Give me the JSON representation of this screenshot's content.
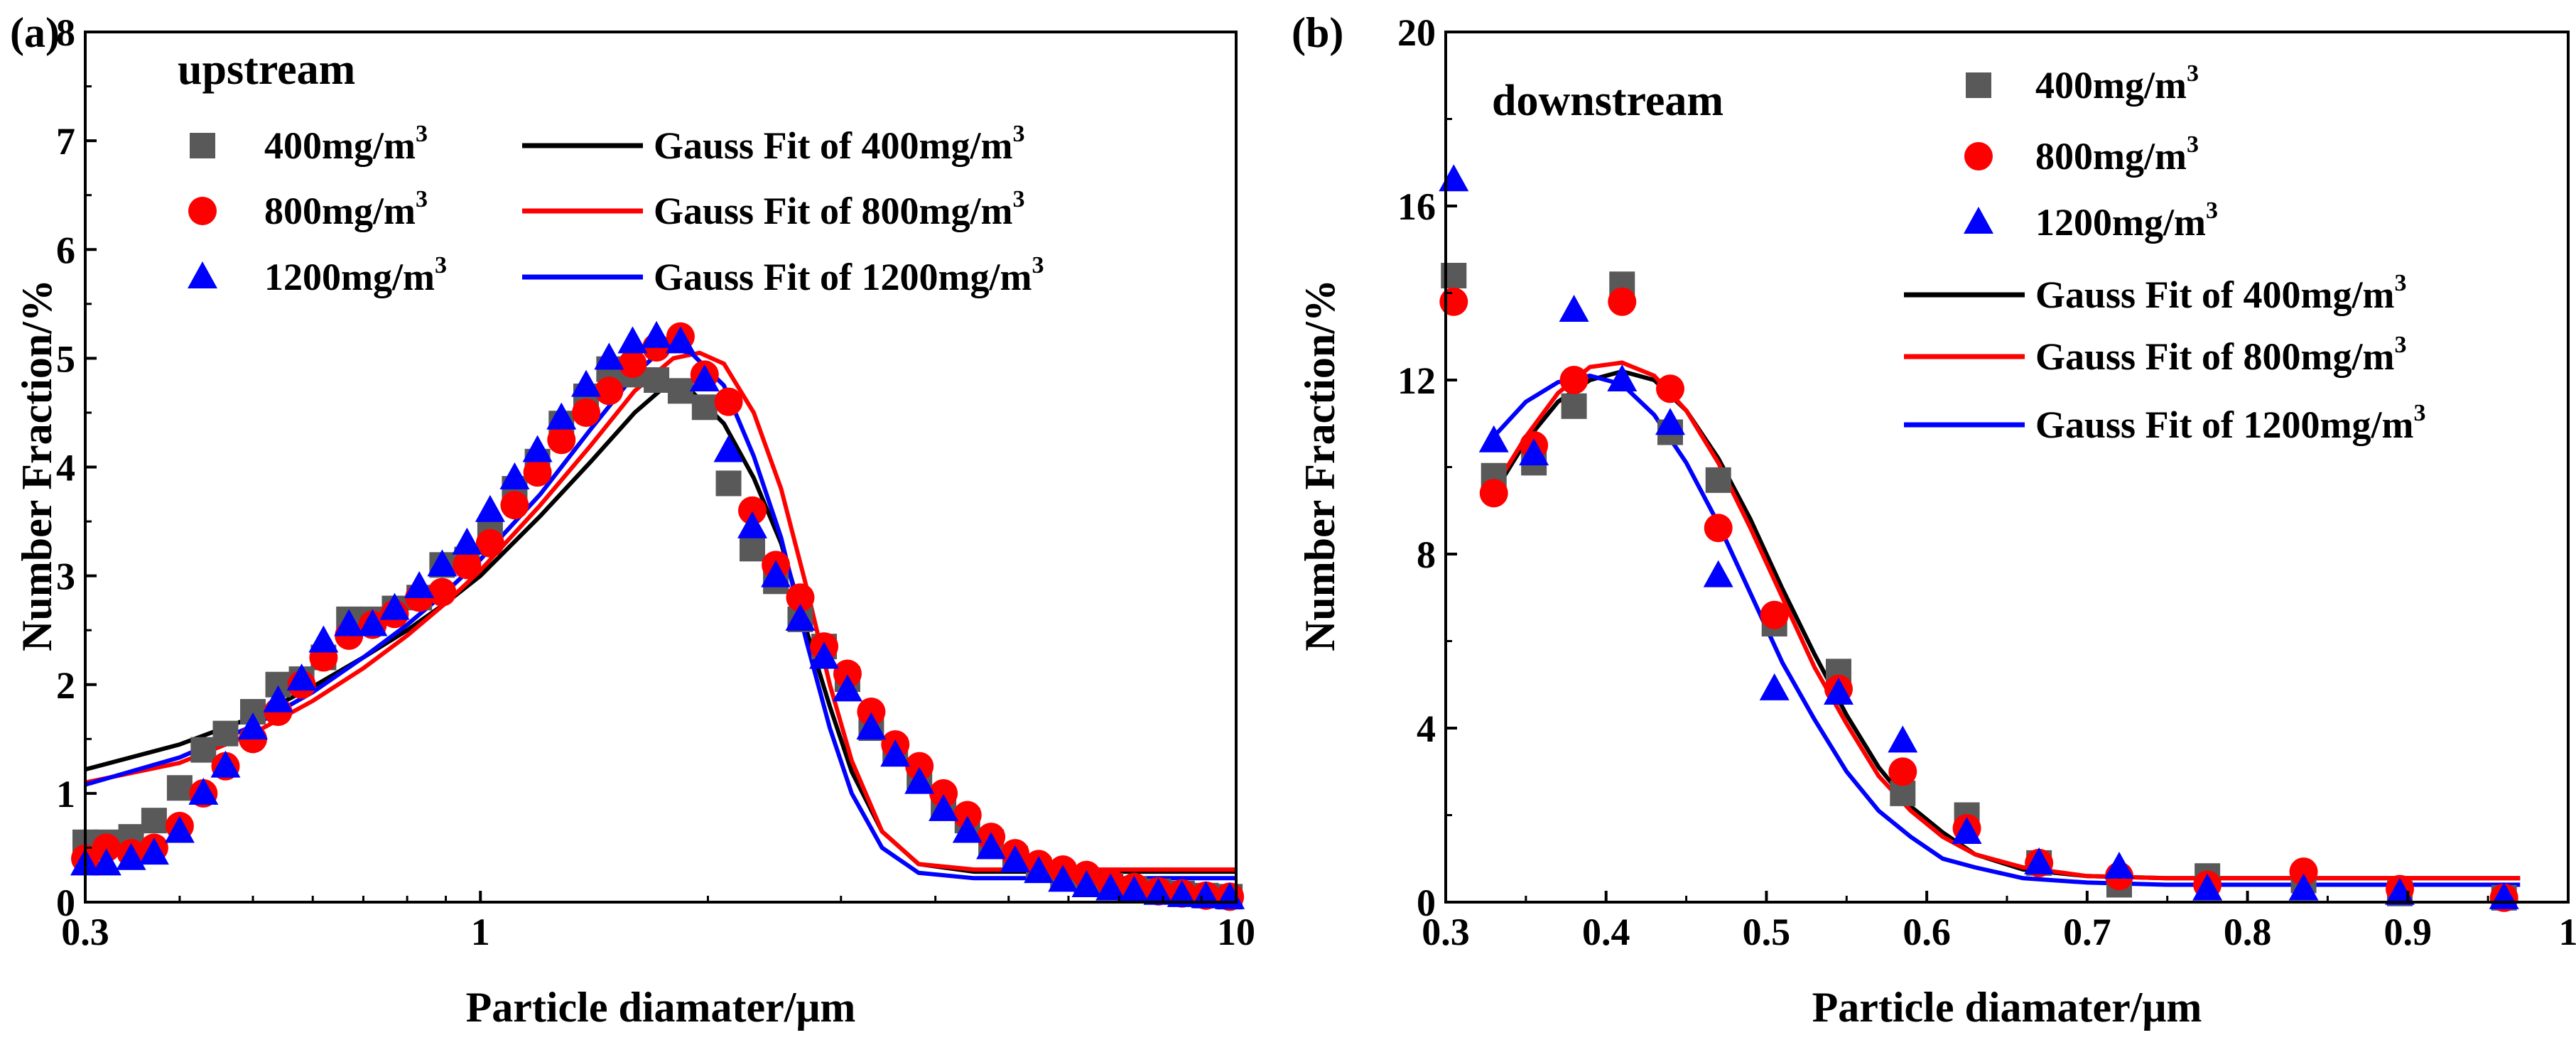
{
  "chart_data": [
    {
      "type": "scatter",
      "panel_label": "(a)",
      "subtitle": "upstream",
      "xlabel": "Particle diamater/μm",
      "ylabel": "Number Fraction/%",
      "xscale": "log",
      "xlim": [
        0.3,
        10
      ],
      "ylim": [
        0,
        8
      ],
      "xticks": [
        0.3,
        1,
        10
      ],
      "xtick_labels": [
        "0.3",
        "1",
        "10"
      ],
      "yticks": [
        0,
        1,
        2,
        3,
        4,
        5,
        6,
        7,
        8
      ],
      "ytick_labels": [
        "0",
        "1",
        "2",
        "3",
        "4",
        "5",
        "6",
        "7",
        "8"
      ],
      "series": [
        {
          "name": "400mg/m",
          "sup": "3",
          "marker": "square",
          "color": "#595959",
          "x": [
            0.3,
            0.32,
            0.345,
            0.37,
            0.4,
            0.43,
            0.46,
            0.5,
            0.54,
            0.58,
            0.62,
            0.67,
            0.72,
            0.77,
            0.83,
            0.89,
            0.96,
            1.03,
            1.11,
            1.19,
            1.28,
            1.38,
            1.48,
            1.59,
            1.71,
            1.84,
            1.98,
            2.13,
            2.29,
            2.46,
            2.65,
            2.85,
            3.06,
            3.29,
            3.54,
            3.81,
            4.1,
            4.41,
            4.74,
            5.1,
            5.48,
            5.9,
            6.34,
            6.82,
            7.33,
            7.89,
            8.48,
            9.12,
            9.81
          ],
          "y": [
            0.55,
            0.55,
            0.6,
            0.75,
            1.05,
            1.4,
            1.55,
            1.75,
            2.0,
            2.05,
            2.25,
            2.6,
            2.6,
            2.7,
            2.8,
            3.1,
            3.15,
            3.4,
            3.8,
            4.05,
            4.4,
            4.65,
            4.9,
            4.85,
            4.8,
            4.7,
            4.55,
            3.85,
            3.25,
            2.95,
            2.6,
            2.35,
            2.05,
            1.6,
            1.4,
            1.15,
            0.9,
            0.75,
            0.55,
            0.4,
            0.3,
            0.25,
            0.2,
            0.15,
            0.12,
            0.1,
            0.08,
            0.06,
            0.05
          ]
        },
        {
          "name": "800mg/m",
          "sup": "3",
          "marker": "circle",
          "color": "#ff0000",
          "x": [
            0.3,
            0.32,
            0.345,
            0.37,
            0.4,
            0.43,
            0.46,
            0.5,
            0.54,
            0.58,
            0.62,
            0.67,
            0.72,
            0.77,
            0.83,
            0.89,
            0.96,
            1.03,
            1.11,
            1.19,
            1.28,
            1.38,
            1.48,
            1.59,
            1.71,
            1.84,
            1.98,
            2.13,
            2.29,
            2.46,
            2.65,
            2.85,
            3.06,
            3.29,
            3.54,
            3.81,
            4.1,
            4.41,
            4.74,
            5.1,
            5.48,
            5.9,
            6.34,
            6.82,
            7.33,
            7.89,
            8.48,
            9.12,
            9.81
          ],
          "y": [
            0.4,
            0.5,
            0.45,
            0.5,
            0.7,
            1.0,
            1.25,
            1.5,
            1.75,
            2.0,
            2.25,
            2.45,
            2.55,
            2.65,
            2.8,
            2.85,
            3.1,
            3.3,
            3.65,
            3.95,
            4.25,
            4.5,
            4.7,
            4.95,
            5.1,
            5.2,
            4.85,
            4.6,
            3.6,
            3.1,
            2.8,
            2.35,
            2.1,
            1.75,
            1.45,
            1.25,
            1.0,
            0.8,
            0.6,
            0.45,
            0.35,
            0.3,
            0.25,
            0.18,
            0.14,
            0.1,
            0.08,
            0.06,
            0.05
          ]
        },
        {
          "name": "1200mg/m",
          "sup": "3",
          "marker": "triangle",
          "color": "#0000ff",
          "x": [
            0.3,
            0.32,
            0.345,
            0.37,
            0.4,
            0.43,
            0.46,
            0.5,
            0.54,
            0.58,
            0.62,
            0.67,
            0.72,
            0.77,
            0.83,
            0.89,
            0.96,
            1.03,
            1.11,
            1.19,
            1.28,
            1.38,
            1.48,
            1.59,
            1.71,
            1.84,
            1.98,
            2.13,
            2.29,
            2.46,
            2.65,
            2.85,
            3.06,
            3.29,
            3.54,
            3.81,
            4.1,
            4.41,
            4.74,
            5.1,
            5.48,
            5.9,
            6.34,
            6.82,
            7.33,
            7.89,
            8.48,
            9.12,
            9.81
          ],
          "y": [
            0.35,
            0.35,
            0.4,
            0.45,
            0.65,
            1.0,
            1.25,
            1.6,
            1.85,
            2.05,
            2.4,
            2.55,
            2.55,
            2.7,
            2.9,
            3.1,
            3.3,
            3.6,
            3.9,
            4.15,
            4.45,
            4.75,
            5.0,
            5.15,
            5.2,
            5.15,
            4.8,
            4.15,
            3.45,
            3.0,
            2.6,
            2.25,
            1.95,
            1.6,
            1.35,
            1.1,
            0.85,
            0.65,
            0.5,
            0.38,
            0.28,
            0.2,
            0.15,
            0.12,
            0.1,
            0.08,
            0.06,
            0.05,
            0.04
          ]
        },
        {
          "name": "Gauss Fit of 400mg/m",
          "sup": "3",
          "marker": "line",
          "color": "#000000",
          "x": [
            0.3,
            0.4,
            0.5,
            0.6,
            0.7,
            0.8,
            0.9,
            1.0,
            1.2,
            1.4,
            1.6,
            1.76,
            1.9,
            2.1,
            2.3,
            2.5,
            2.7,
            2.9,
            3.1,
            3.4,
            3.8,
            4.5,
            6.0,
            8.0,
            10.0
          ],
          "y": [
            1.22,
            1.45,
            1.7,
            1.98,
            2.25,
            2.5,
            2.75,
            3.0,
            3.55,
            4.05,
            4.5,
            4.75,
            4.7,
            4.4,
            3.9,
            3.3,
            2.5,
            1.8,
            1.2,
            0.65,
            0.35,
            0.28,
            0.28,
            0.28,
            0.28
          ]
        },
        {
          "name": "Gauss Fit of 800mg/m",
          "sup": "3",
          "marker": "line",
          "color": "#ff0000",
          "x": [
            0.3,
            0.4,
            0.5,
            0.6,
            0.7,
            0.8,
            0.9,
            1.0,
            1.2,
            1.4,
            1.6,
            1.8,
            1.95,
            2.1,
            2.3,
            2.5,
            2.7,
            2.9,
            3.1,
            3.4,
            3.8,
            4.5,
            6.0,
            8.0,
            10.0
          ],
          "y": [
            1.1,
            1.28,
            1.55,
            1.85,
            2.15,
            2.45,
            2.75,
            3.05,
            3.65,
            4.2,
            4.7,
            5.0,
            5.05,
            4.95,
            4.5,
            3.8,
            2.9,
            2.0,
            1.3,
            0.65,
            0.35,
            0.3,
            0.3,
            0.3,
            0.3
          ]
        },
        {
          "name": "Gauss Fit of 1200mg/m",
          "sup": "3",
          "marker": "line",
          "color": "#0000ff",
          "x": [
            0.3,
            0.4,
            0.5,
            0.6,
            0.7,
            0.8,
            0.9,
            1.0,
            1.2,
            1.4,
            1.6,
            1.75,
            1.9,
            2.1,
            2.3,
            2.5,
            2.7,
            2.9,
            3.1,
            3.4,
            3.8,
            4.5,
            6.0,
            8.0,
            10.0
          ],
          "y": [
            1.08,
            1.33,
            1.62,
            1.93,
            2.25,
            2.55,
            2.85,
            3.15,
            3.75,
            4.35,
            4.85,
            5.1,
            5.05,
            4.75,
            4.1,
            3.35,
            2.4,
            1.6,
            1.0,
            0.5,
            0.27,
            0.22,
            0.22,
            0.22,
            0.22
          ]
        }
      ]
    },
    {
      "type": "scatter",
      "panel_label": "(b)",
      "subtitle": "downstream",
      "xlabel": "Particle diamater/μm",
      "ylabel": "Number Fraction/%",
      "xscale": "linear",
      "xlim": [
        0.3,
        1.0
      ],
      "ylim": [
        0,
        20
      ],
      "xticks": [
        0.3,
        0.4,
        0.5,
        0.6,
        0.7,
        0.8,
        0.9,
        1.0
      ],
      "xtick_labels": [
        "0.3",
        "0.4",
        "0.5",
        "0.6",
        "0.7",
        "0.8",
        "0.9",
        "1"
      ],
      "yticks": [
        0,
        4,
        8,
        12,
        16,
        20
      ],
      "ytick_labels": [
        "0",
        "4",
        "8",
        "12",
        "16",
        "20"
      ],
      "series": [
        {
          "name": "400mg/m",
          "sup": "3",
          "marker": "square",
          "color": "#595959",
          "x": [
            0.305,
            0.33,
            0.355,
            0.38,
            0.41,
            0.44,
            0.47,
            0.505,
            0.545,
            0.585,
            0.625,
            0.67,
            0.72,
            0.775,
            0.835,
            0.895,
            0.96
          ],
          "y": [
            14.4,
            9.8,
            10.1,
            11.4,
            14.2,
            10.8,
            9.7,
            6.4,
            5.3,
            2.5,
            2.0,
            0.9,
            0.4,
            0.6,
            0.5,
            0.2,
            0.1
          ]
        },
        {
          "name": "800mg/m",
          "sup": "3",
          "marker": "circle",
          "color": "#ff0000",
          "x": [
            0.305,
            0.33,
            0.355,
            0.38,
            0.41,
            0.44,
            0.47,
            0.505,
            0.545,
            0.585,
            0.625,
            0.67,
            0.72,
            0.775,
            0.835,
            0.895,
            0.96
          ],
          "y": [
            13.8,
            9.4,
            10.5,
            12.0,
            13.8,
            11.8,
            8.6,
            6.6,
            4.9,
            3.0,
            1.7,
            0.9,
            0.6,
            0.4,
            0.7,
            0.3,
            0.1
          ]
        },
        {
          "name": "1200mg/m",
          "sup": "3",
          "marker": "triangle",
          "color": "#0000ff",
          "x": [
            0.305,
            0.33,
            0.355,
            0.38,
            0.41,
            0.44,
            0.47,
            0.505,
            0.545,
            0.585,
            0.625,
            0.67,
            0.72,
            0.775,
            0.835,
            0.895,
            0.96
          ],
          "y": [
            16.6,
            10.6,
            10.3,
            13.6,
            12.0,
            11.0,
            7.5,
            4.9,
            4.8,
            3.7,
            1.6,
            0.9,
            0.8,
            0.3,
            0.3,
            0.2,
            0.1
          ]
        },
        {
          "name": "Gauss Fit of 400mg/m",
          "sup": "3",
          "marker": "line",
          "color": "#000000",
          "x": [
            0.33,
            0.35,
            0.37,
            0.39,
            0.41,
            0.43,
            0.45,
            0.47,
            0.49,
            0.51,
            0.53,
            0.55,
            0.57,
            0.59,
            0.61,
            0.63,
            0.66,
            0.7,
            0.75,
            0.8,
            0.85,
            0.9,
            0.97
          ],
          "y": [
            9.4,
            10.6,
            11.5,
            12.0,
            12.2,
            12.0,
            11.3,
            10.2,
            8.8,
            7.2,
            5.7,
            4.3,
            3.1,
            2.2,
            1.6,
            1.1,
            0.75,
            0.6,
            0.55,
            0.55,
            0.55,
            0.55,
            0.55
          ]
        },
        {
          "name": "Gauss Fit of 800mg/m",
          "sup": "3",
          "marker": "line",
          "color": "#ff0000",
          "x": [
            0.33,
            0.35,
            0.37,
            0.39,
            0.41,
            0.43,
            0.45,
            0.47,
            0.49,
            0.51,
            0.53,
            0.55,
            0.57,
            0.59,
            0.61,
            0.63,
            0.66,
            0.7,
            0.75,
            0.8,
            0.85,
            0.9,
            0.97
          ],
          "y": [
            9.5,
            10.7,
            11.7,
            12.3,
            12.4,
            12.1,
            11.3,
            10.1,
            8.6,
            7.0,
            5.4,
            4.1,
            2.9,
            2.1,
            1.5,
            1.1,
            0.8,
            0.6,
            0.55,
            0.55,
            0.55,
            0.55,
            0.55
          ]
        },
        {
          "name": "Gauss Fit of 1200mg/m",
          "sup": "3",
          "marker": "line",
          "color": "#0000ff",
          "x": [
            0.33,
            0.35,
            0.37,
            0.39,
            0.41,
            0.43,
            0.45,
            0.47,
            0.49,
            0.51,
            0.53,
            0.55,
            0.57,
            0.59,
            0.61,
            0.63,
            0.66,
            0.7,
            0.75,
            0.8,
            0.85,
            0.9,
            0.97
          ],
          "y": [
            10.7,
            11.5,
            11.95,
            12.1,
            11.9,
            11.2,
            10.1,
            8.7,
            7.1,
            5.5,
            4.2,
            3.0,
            2.1,
            1.5,
            1.0,
            0.8,
            0.55,
            0.45,
            0.4,
            0.4,
            0.4,
            0.4,
            0.4
          ]
        }
      ]
    }
  ]
}
